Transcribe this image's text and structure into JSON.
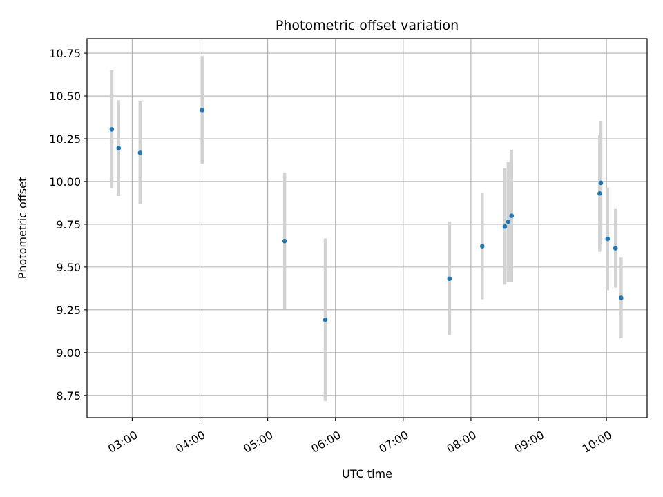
{
  "chart_data": {
    "type": "scatter",
    "title": "Photometric offset variation",
    "xlabel": "UTC time",
    "ylabel": "Photometric offset",
    "grid": true,
    "x_axis_type": "time",
    "xlim": [
      "02:20",
      "10:36"
    ],
    "ylim": [
      8.62,
      10.835
    ],
    "x_ticks": [
      "03:00",
      "04:00",
      "05:00",
      "06:00",
      "07:00",
      "08:00",
      "09:00",
      "10:00"
    ],
    "y_ticks": [
      8.75,
      9.0,
      9.25,
      9.5,
      9.75,
      10.0,
      10.25,
      10.5,
      10.75
    ],
    "y_tick_labels": [
      "8.75",
      "9.00",
      "9.25",
      "9.50",
      "9.75",
      "10.00",
      "10.25",
      "10.50",
      "10.75"
    ],
    "point_color": "#1f77b4",
    "errorbar_color": "#d3d3d3",
    "points": [
      {
        "x": "02:42",
        "y": 10.305,
        "err": 0.345
      },
      {
        "x": "02:48",
        "y": 10.195,
        "err": 0.28
      },
      {
        "x": "03:07",
        "y": 10.168,
        "err": 0.3
      },
      {
        "x": "04:02",
        "y": 10.418,
        "err": 0.315
      },
      {
        "x": "05:15",
        "y": 9.652,
        "err": 0.4
      },
      {
        "x": "05:51",
        "y": 9.192,
        "err": 0.475
      },
      {
        "x": "07:41",
        "y": 9.432,
        "err": 0.33
      },
      {
        "x": "08:10",
        "y": 9.622,
        "err": 0.31
      },
      {
        "x": "08:30",
        "y": 9.737,
        "err": 0.34
      },
      {
        "x": "08:33",
        "y": 9.765,
        "err": 0.35
      },
      {
        "x": "08:36",
        "y": 9.8,
        "err": 0.385
      },
      {
        "x": "09:54",
        "y": 9.93,
        "err": 0.34
      },
      {
        "x": "09:55",
        "y": 9.992,
        "err": 0.36
      },
      {
        "x": "10:01",
        "y": 9.665,
        "err": 0.3
      },
      {
        "x": "10:08",
        "y": 9.61,
        "err": 0.23
      },
      {
        "x": "10:13",
        "y": 9.32,
        "err": 0.235
      }
    ]
  }
}
